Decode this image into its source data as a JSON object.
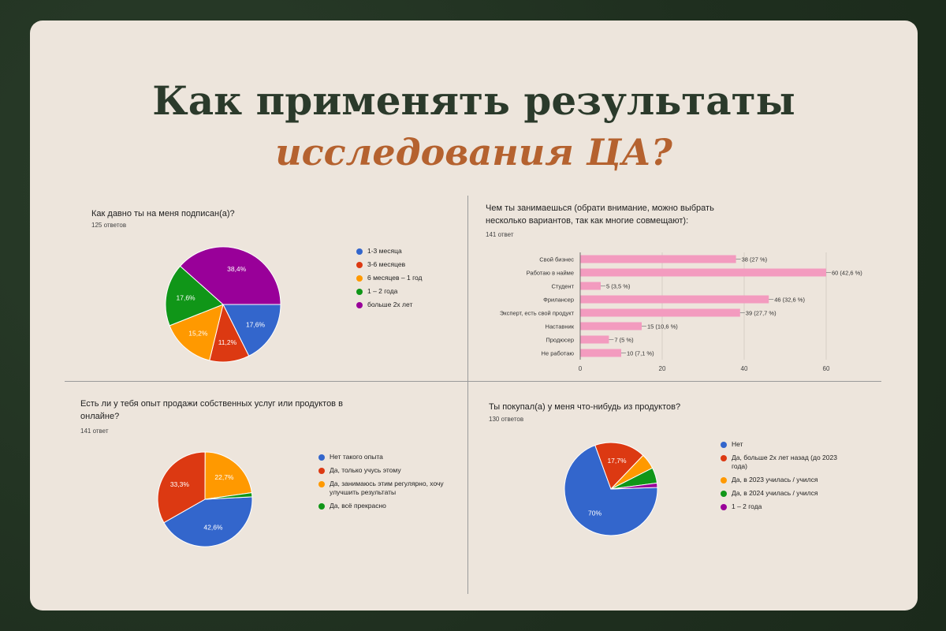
{
  "title": {
    "line1": "Как применять результаты",
    "line2": "исследования ЦА?"
  },
  "colors": {
    "blue": "#3366cc",
    "red": "#dc3912",
    "orange": "#ff9900",
    "green": "#109618",
    "purple": "#990099",
    "bar": "#f39bbf",
    "title_dark": "#2b3a2b",
    "title_accent": "#b5622f"
  },
  "chart_data": [
    {
      "type": "pie",
      "title": "Как давно ты на меня подписан(а)?",
      "subtitle": "125 ответов",
      "labels": [
        "1-3 месяца",
        "3-6 месяцев",
        "6 месяцев – 1 год",
        "1 – 2 года",
        "больше 2х лет"
      ],
      "values": [
        17.6,
        11.2,
        15.2,
        17.6,
        38.4
      ],
      "value_labels": [
        "17,6%",
        "11,2%",
        "15,2%",
        "17,6%",
        "38,4%"
      ],
      "colors": [
        "#3366cc",
        "#dc3912",
        "#ff9900",
        "#109618",
        "#990099"
      ],
      "legend": "right"
    },
    {
      "type": "bar",
      "orientation": "horizontal",
      "title": "Чем ты занимаешься (обрати внимание, можно выбрать несколько вариантов, так как многие совмещают):",
      "subtitle": "141 ответ",
      "categories": [
        "Свой бизнес",
        "Работаю в найме",
        "Студент",
        "Фрилансер",
        "Эксперт, есть свой продукт",
        "Наставник",
        "Продюсер",
        "Не работаю"
      ],
      "values": [
        38,
        60,
        5,
        46,
        39,
        15,
        7,
        10
      ],
      "value_labels": [
        "38 (27 %)",
        "60 (42,6 %)",
        "5 (3,5 %)",
        "46 (32,6 %)",
        "39 (27,7 %)",
        "15 (10,6 %)",
        "7 (5 %)",
        "10 (7,1 %)"
      ],
      "xlim": [
        0,
        60
      ],
      "xticks": [
        "0",
        "20",
        "40",
        "60"
      ],
      "color": "#f39bbf",
      "grid": true
    },
    {
      "type": "pie",
      "title": "Есть ли у тебя опыт продажи собственных услуг или продуктов в онлайне?",
      "subtitle": "141 ответ",
      "labels": [
        "Нет такого опыта",
        "Да, только учусь этому",
        "Да, занимаюсь этим регулярно, хочу улучшить результаты",
        "Да, всё прекрасно"
      ],
      "values": [
        42.6,
        33.3,
        22.7,
        1.4
      ],
      "value_labels": [
        "42,6%",
        "33,3%",
        "22,7%",
        ""
      ],
      "colors": [
        "#3366cc",
        "#dc3912",
        "#ff9900",
        "#109618"
      ],
      "legend": "right"
    },
    {
      "type": "pie",
      "title": "Ты покупал(а) у меня что-нибудь из продуктов?",
      "subtitle": "130 ответов",
      "labels": [
        "Нет",
        "Да, больше 2х лет назад (до 2023 года)",
        "Да, в 2023 училась / учился",
        "Да, в 2024 училась / учился",
        "1 – 2 года"
      ],
      "values": [
        70,
        17.7,
        5.4,
        5.4,
        1.5
      ],
      "value_labels": [
        "70%",
        "17,7%",
        "",
        "",
        ""
      ],
      "colors": [
        "#3366cc",
        "#dc3912",
        "#ff9900",
        "#109618",
        "#990099"
      ],
      "legend": "right"
    }
  ]
}
